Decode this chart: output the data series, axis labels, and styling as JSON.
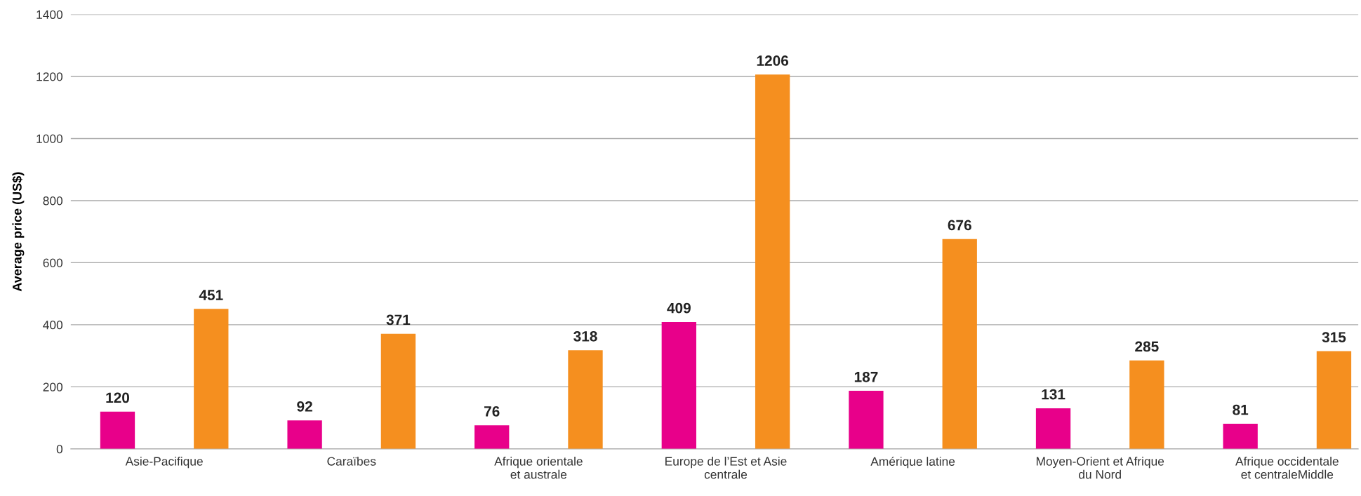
{
  "chart_data": {
    "type": "bar",
    "ylabel": "Average price (US$)",
    "categories": [
      "Asie-Pacifique",
      "Caraïbes",
      "Afrique orientale\net australe",
      "Europe de l’Est et Asie\ncentrale",
      "Amérique latine",
      "Moyen-Orient et Afrique\ndu Nord",
      "Afrique occidentale\net centraleMiddle"
    ],
    "series": [
      {
        "color": "#e8008a",
        "values": [
          120,
          92,
          76,
          409,
          187,
          131,
          81
        ]
      },
      {
        "color": "#f58f1f",
        "values": [
          451,
          371,
          318,
          1206,
          676,
          285,
          315
        ]
      }
    ],
    "ylim": [
      0,
      1400
    ],
    "yticks": [
      0,
      200,
      400,
      600,
      800,
      1000,
      1200,
      1400
    ],
    "grid": "y",
    "data_labels": true
  }
}
